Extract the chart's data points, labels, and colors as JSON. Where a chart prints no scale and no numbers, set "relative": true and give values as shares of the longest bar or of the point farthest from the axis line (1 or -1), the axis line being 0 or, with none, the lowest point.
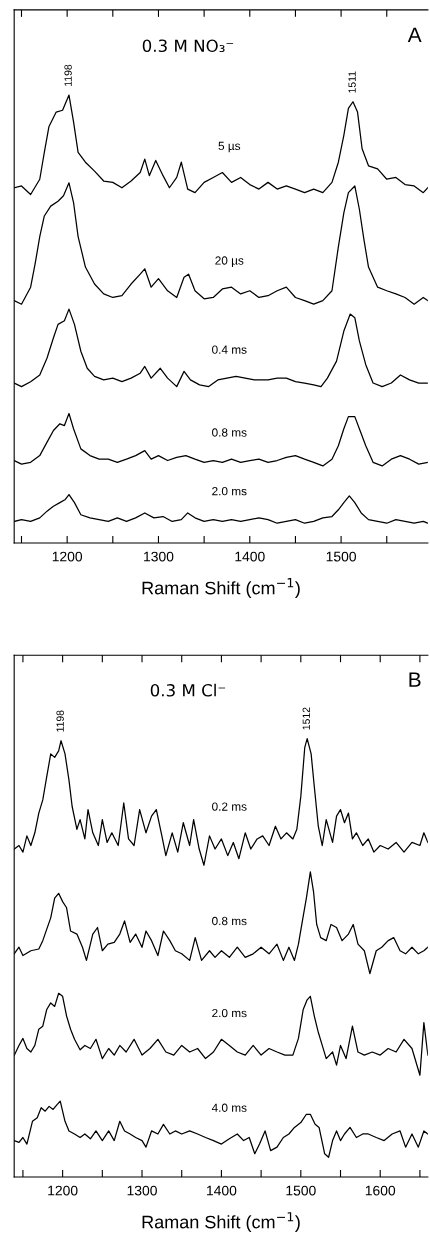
{
  "chart_data": [
    {
      "type": "line",
      "relative": true,
      "title": "0.3 M NO₃⁻",
      "xlabel": "Raman Shift (cm$^{−1}$)",
      "tick_labels": "x",
      "xlim": [
        1142,
        1595
      ],
      "xticks": [
        {
          "value": 1150,
          "label": null
        },
        1200,
        {
          "value": 1250,
          "label": null
        },
        1300,
        {
          "value": 1350,
          "label": null
        },
        1400,
        {
          "value": 1450,
          "label": null
        },
        1500,
        {
          "value": 1550,
          "label": null
        }
      ],
      "annotations": [
        "A",
        {
          "text": "1198",
          "x": 1202,
          "y": 1.0
        },
        {
          "text": "1511",
          "x": 1513,
          "y": 0.985
        }
      ],
      "series": [
        {
          "name": "5 µs",
          "color": "#000000",
          "x": [
            1142,
            1150,
            1160,
            1170,
            1175,
            1180,
            1188,
            1195,
            1202,
            1207,
            1212,
            1220,
            1230,
            1240,
            1250,
            1260,
            1270,
            1280,
            1285,
            1290,
            1297,
            1305,
            1312,
            1320,
            1325,
            1332,
            1340,
            1350,
            1360,
            1370,
            1380,
            1390,
            1400,
            1410,
            1420,
            1430,
            1440,
            1450,
            1460,
            1470,
            1480,
            1490,
            1497,
            1503,
            1508,
            1513,
            1518,
            1523,
            1530,
            1540,
            1550,
            1560,
            1570,
            1580,
            1590,
            1595
          ],
          "values": [
            0.793,
            0.797,
            0.778,
            0.812,
            0.872,
            0.929,
            0.962,
            0.966,
            1.0,
            0.94,
            0.872,
            0.85,
            0.83,
            0.808,
            0.805,
            0.793,
            0.808,
            0.827,
            0.857,
            0.82,
            0.854,
            0.82,
            0.793,
            0.816,
            0.85,
            0.79,
            0.782,
            0.805,
            0.816,
            0.827,
            0.805,
            0.816,
            0.8,
            0.79,
            0.805,
            0.79,
            0.797,
            0.79,
            0.782,
            0.79,
            0.782,
            0.805,
            0.85,
            0.91,
            0.97,
            0.985,
            0.962,
            0.88,
            0.842,
            0.835,
            0.812,
            0.816,
            0.8,
            0.797,
            0.782,
            0.793
          ]
        },
        {
          "name": "20 µs",
          "color": "#000000",
          "x": [
            1142,
            1150,
            1160,
            1165,
            1170,
            1175,
            1182,
            1190,
            1196,
            1202,
            1207,
            1212,
            1220,
            1230,
            1240,
            1250,
            1260,
            1270,
            1280,
            1285,
            1292,
            1300,
            1310,
            1320,
            1328,
            1333,
            1340,
            1350,
            1360,
            1370,
            1380,
            1390,
            1400,
            1410,
            1420,
            1430,
            1440,
            1450,
            1460,
            1470,
            1480,
            1490,
            1497,
            1503,
            1508,
            1515,
            1520,
            1525,
            1530,
            1540,
            1550,
            1560,
            1570,
            1580,
            1590,
            1595
          ],
          "values": [
            0.541,
            0.533,
            0.571,
            0.624,
            0.684,
            0.73,
            0.752,
            0.763,
            0.775,
            0.804,
            0.76,
            0.684,
            0.616,
            0.578,
            0.556,
            0.548,
            0.552,
            0.578,
            0.6,
            0.612,
            0.571,
            0.59,
            0.563,
            0.548,
            0.593,
            0.6,
            0.563,
            0.545,
            0.548,
            0.567,
            0.571,
            0.556,
            0.563,
            0.548,
            0.552,
            0.563,
            0.571,
            0.548,
            0.541,
            0.533,
            0.541,
            0.563,
            0.661,
            0.737,
            0.782,
            0.797,
            0.745,
            0.677,
            0.616,
            0.571,
            0.563,
            0.556,
            0.548,
            0.533,
            0.548,
            0.541
          ]
        },
        {
          "name": "0.4 ms",
          "color": "#000000",
          "x": [
            1142,
            1150,
            1160,
            1170,
            1178,
            1185,
            1190,
            1197,
            1202,
            1208,
            1215,
            1222,
            1230,
            1240,
            1250,
            1260,
            1270,
            1280,
            1285,
            1292,
            1302,
            1310,
            1320,
            1328,
            1335,
            1345,
            1355,
            1365,
            1375,
            1385,
            1395,
            1405,
            1420,
            1430,
            1440,
            1450,
            1460,
            1470,
            1478,
            1485,
            1495,
            1503,
            1510,
            1515,
            1520,
            1527,
            1535,
            1545,
            1555,
            1565,
            1575,
            1585,
            1595
          ],
          "values": [
            0.357,
            0.349,
            0.36,
            0.375,
            0.413,
            0.458,
            0.488,
            0.496,
            0.522,
            0.488,
            0.428,
            0.39,
            0.372,
            0.364,
            0.368,
            0.36,
            0.368,
            0.379,
            0.394,
            0.368,
            0.39,
            0.368,
            0.349,
            0.383,
            0.364,
            0.353,
            0.349,
            0.364,
            0.368,
            0.372,
            0.368,
            0.364,
            0.364,
            0.368,
            0.368,
            0.36,
            0.357,
            0.353,
            0.349,
            0.368,
            0.406,
            0.473,
            0.511,
            0.503,
            0.451,
            0.398,
            0.357,
            0.349,
            0.357,
            0.375,
            0.364,
            0.357,
            0.357
          ]
        },
        {
          "name": "0.8 ms",
          "color": "#000000",
          "x": [
            1142,
            1150,
            1160,
            1170,
            1178,
            1185,
            1192,
            1197,
            1202,
            1207,
            1215,
            1225,
            1235,
            1245,
            1255,
            1265,
            1275,
            1285,
            1292,
            1300,
            1310,
            1320,
            1330,
            1340,
            1350,
            1360,
            1370,
            1380,
            1390,
            1400,
            1410,
            1420,
            1430,
            1440,
            1450,
            1460,
            1470,
            1480,
            1490,
            1497,
            1503,
            1508,
            1515,
            1520,
            1527,
            1535,
            1545,
            1555,
            1565,
            1575,
            1585,
            1595
          ],
          "values": [
            0.184,
            0.176,
            0.18,
            0.195,
            0.225,
            0.251,
            0.266,
            0.262,
            0.289,
            0.255,
            0.21,
            0.195,
            0.187,
            0.187,
            0.18,
            0.187,
            0.195,
            0.206,
            0.187,
            0.195,
            0.184,
            0.191,
            0.195,
            0.187,
            0.18,
            0.184,
            0.18,
            0.187,
            0.18,
            0.184,
            0.187,
            0.18,
            0.184,
            0.191,
            0.195,
            0.187,
            0.18,
            0.172,
            0.187,
            0.217,
            0.255,
            0.282,
            0.282,
            0.255,
            0.217,
            0.18,
            0.172,
            0.187,
            0.195,
            0.187,
            0.176,
            0.18
          ]
        },
        {
          "name": "2.0 ms",
          "color": "#000000",
          "x": [
            1142,
            1150,
            1160,
            1170,
            1178,
            1185,
            1192,
            1198,
            1202,
            1208,
            1215,
            1225,
            1235,
            1245,
            1255,
            1265,
            1275,
            1285,
            1295,
            1305,
            1315,
            1325,
            1332,
            1340,
            1350,
            1360,
            1370,
            1380,
            1390,
            1400,
            1410,
            1420,
            1430,
            1440,
            1450,
            1460,
            1470,
            1480,
            1490,
            1497,
            1503,
            1509,
            1515,
            1522,
            1530,
            1540,
            1550,
            1560,
            1570,
            1580,
            1590,
            1595
          ],
          "values": [
            0.048,
            0.052,
            0.048,
            0.056,
            0.071,
            0.082,
            0.09,
            0.097,
            0.108,
            0.09,
            0.063,
            0.056,
            0.052,
            0.048,
            0.056,
            0.048,
            0.056,
            0.067,
            0.056,
            0.059,
            0.048,
            0.052,
            0.067,
            0.056,
            0.048,
            0.052,
            0.048,
            0.052,
            0.048,
            0.052,
            0.056,
            0.052,
            0.044,
            0.048,
            0.052,
            0.044,
            0.048,
            0.056,
            0.059,
            0.074,
            0.09,
            0.105,
            0.09,
            0.067,
            0.052,
            0.048,
            0.044,
            0.052,
            0.048,
            0.044,
            0.048,
            0.044
          ]
        }
      ]
    },
    {
      "type": "line",
      "relative": true,
      "title": "0.3 M Cl⁻",
      "xlabel": "Raman Shift (cm$^{−1}$)",
      "tick_labels": "x",
      "xlim": [
        1139,
        1660
      ],
      "xticks": [
        {
          "value": 1150,
          "label": null
        },
        1200,
        {
          "value": 1250,
          "label": null
        },
        1300,
        {
          "value": 1350,
          "label": null
        },
        1400,
        {
          "value": 1450,
          "label": null
        },
        1500,
        {
          "value": 1550,
          "label": null
        },
        1600,
        {
          "value": 1650,
          "label": null
        }
      ],
      "annotations": [
        "B",
        {
          "text": "1198",
          "x": 1198,
          "y": 0.995
        },
        {
          "text": "1512",
          "x": 1508,
          "y": 1.0
        }
      ],
      "series": [
        {
          "name": "0.2 ms",
          "color": "#000000",
          "x": [
            1139,
            1145,
            1150,
            1155,
            1160,
            1165,
            1170,
            1175,
            1180,
            1185,
            1190,
            1195,
            1198,
            1203,
            1208,
            1212,
            1218,
            1222,
            1228,
            1232,
            1238,
            1245,
            1250,
            1256,
            1262,
            1270,
            1277,
            1283,
            1290,
            1297,
            1305,
            1312,
            1318,
            1325,
            1330,
            1338,
            1345,
            1352,
            1360,
            1365,
            1372,
            1378,
            1385,
            1392,
            1400,
            1408,
            1415,
            1422,
            1430,
            1437,
            1445,
            1452,
            1460,
            1468,
            1475,
            1482,
            1490,
            1495,
            1500,
            1505,
            1508,
            1513,
            1517,
            1522,
            1527,
            1532,
            1540,
            1545,
            1550,
            1555,
            1560,
            1565,
            1570,
            1578,
            1585,
            1592,
            1600,
            1610,
            1620,
            1630,
            1640,
            1650,
            1655,
            1660
          ],
          "values": [
            0.748,
            0.756,
            0.741,
            0.778,
            0.756,
            0.785,
            0.83,
            0.86,
            0.913,
            0.965,
            0.957,
            0.972,
            0.995,
            0.965,
            0.905,
            0.845,
            0.793,
            0.815,
            0.771,
            0.838,
            0.785,
            0.756,
            0.815,
            0.763,
            0.785,
            0.756,
            0.853,
            0.771,
            0.756,
            0.838,
            0.785,
            0.823,
            0.838,
            0.778,
            0.733,
            0.785,
            0.741,
            0.808,
            0.756,
            0.815,
            0.748,
            0.711,
            0.778,
            0.748,
            0.771,
            0.733,
            0.763,
            0.726,
            0.785,
            0.748,
            0.771,
            0.778,
            0.756,
            0.8,
            0.771,
            0.785,
            0.771,
            0.793,
            0.868,
            0.98,
            1.0,
            0.965,
            0.89,
            0.8,
            0.756,
            0.815,
            0.763,
            0.823,
            0.838,
            0.808,
            0.83,
            0.771,
            0.785,
            0.756,
            0.771,
            0.741,
            0.756,
            0.748,
            0.763,
            0.741,
            0.763,
            0.756,
            0.785,
            0.763
          ]
        },
        {
          "name": "0.8 ms",
          "color": "#000000",
          "x": [
            1139,
            1145,
            1150,
            1160,
            1170,
            1175,
            1185,
            1190,
            1195,
            1200,
            1205,
            1210,
            1218,
            1225,
            1230,
            1238,
            1244,
            1250,
            1257,
            1265,
            1272,
            1278,
            1285,
            1292,
            1300,
            1305,
            1312,
            1320,
            1327,
            1335,
            1342,
            1350,
            1360,
            1367,
            1375,
            1385,
            1392,
            1400,
            1410,
            1420,
            1430,
            1440,
            1450,
            1460,
            1470,
            1478,
            1485,
            1492,
            1497,
            1502,
            1507,
            1512,
            1516,
            1520,
            1525,
            1532,
            1538,
            1545,
            1552,
            1560,
            1566,
            1572,
            1580,
            1587,
            1595,
            1602,
            1610,
            1617,
            1625,
            1632,
            1640,
            1648,
            1655,
            1660
          ],
          "values": [
            0.509,
            0.524,
            0.505,
            0.516,
            0.52,
            0.539,
            0.591,
            0.636,
            0.647,
            0.628,
            0.614,
            0.561,
            0.554,
            0.524,
            0.494,
            0.554,
            0.569,
            0.516,
            0.531,
            0.535,
            0.554,
            0.584,
            0.535,
            0.554,
            0.524,
            0.561,
            0.539,
            0.505,
            0.561,
            0.539,
            0.516,
            0.509,
            0.494,
            0.546,
            0.494,
            0.516,
            0.501,
            0.516,
            0.501,
            0.524,
            0.501,
            0.509,
            0.524,
            0.509,
            0.531,
            0.494,
            0.524,
            0.494,
            0.531,
            0.584,
            0.636,
            0.696,
            0.651,
            0.576,
            0.546,
            0.539,
            0.576,
            0.569,
            0.539,
            0.554,
            0.576,
            0.531,
            0.516,
            0.464,
            0.516,
            0.524,
            0.539,
            0.546,
            0.516,
            0.509,
            0.524,
            0.509,
            0.516,
            0.524
          ]
        },
        {
          "name": "2.0 ms",
          "color": "#000000",
          "x": [
            1139,
            1145,
            1150,
            1155,
            1160,
            1165,
            1170,
            1175,
            1180,
            1185,
            1190,
            1195,
            1200,
            1205,
            1210,
            1215,
            1222,
            1228,
            1235,
            1242,
            1250,
            1258,
            1265,
            1272,
            1280,
            1290,
            1300,
            1310,
            1320,
            1330,
            1340,
            1350,
            1360,
            1370,
            1380,
            1390,
            1400,
            1410,
            1420,
            1430,
            1440,
            1450,
            1460,
            1470,
            1480,
            1490,
            1497,
            1503,
            1508,
            1512,
            1517,
            1522,
            1527,
            1532,
            1540,
            1545,
            1550,
            1557,
            1565,
            1572,
            1580,
            1590,
            1600,
            1610,
            1620,
            1630,
            1640,
            1650,
            1655,
            1660
          ],
          "values": [
            0.277,
            0.3,
            0.316,
            0.293,
            0.285,
            0.3,
            0.337,
            0.344,
            0.382,
            0.397,
            0.389,
            0.419,
            0.412,
            0.367,
            0.337,
            0.314,
            0.29,
            0.3,
            0.293,
            0.314,
            0.27,
            0.293,
            0.278,
            0.3,
            0.285,
            0.314,
            0.278,
            0.293,
            0.314,
            0.285,
            0.278,
            0.3,
            0.285,
            0.293,
            0.27,
            0.285,
            0.314,
            0.3,
            0.285,
            0.278,
            0.3,
            0.278,
            0.293,
            0.285,
            0.278,
            0.278,
            0.316,
            0.382,
            0.404,
            0.412,
            0.367,
            0.33,
            0.3,
            0.27,
            0.285,
            0.255,
            0.3,
            0.27,
            0.344,
            0.285,
            0.278,
            0.285,
            0.278,
            0.293,
            0.285,
            0.314,
            0.293,
            0.232,
            0.352,
            0.278
          ]
        },
        {
          "name": "4.0 ms",
          "color": "#000000",
          "x": [
            1139,
            1145,
            1150,
            1155,
            1162,
            1168,
            1173,
            1178,
            1183,
            1188,
            1193,
            1197,
            1203,
            1208,
            1215,
            1222,
            1228,
            1235,
            1242,
            1250,
            1258,
            1265,
            1272,
            1278,
            1285,
            1292,
            1300,
            1305,
            1312,
            1320,
            1327,
            1335,
            1342,
            1350,
            1360,
            1370,
            1380,
            1390,
            1400,
            1410,
            1420,
            1428,
            1435,
            1442,
            1448,
            1455,
            1462,
            1470,
            1478,
            1485,
            1492,
            1500,
            1507,
            1512,
            1518,
            1523,
            1530,
            1535,
            1540,
            1545,
            1550,
            1555,
            1562,
            1570,
            1578,
            1585,
            1595,
            1605,
            1615,
            1625,
            1632,
            1640,
            1648,
            1655,
            1660
          ],
          "values": [
            0.083,
            0.079,
            0.09,
            0.075,
            0.127,
            0.135,
            0.158,
            0.15,
            0.161,
            0.154,
            0.165,
            0.173,
            0.127,
            0.105,
            0.098,
            0.09,
            0.098,
            0.087,
            0.105,
            0.083,
            0.105,
            0.083,
            0.127,
            0.105,
            0.098,
            0.09,
            0.083,
            0.068,
            0.105,
            0.098,
            0.12,
            0.098,
            0.105,
            0.098,
            0.105,
            0.098,
            0.09,
            0.083,
            0.075,
            0.087,
            0.098,
            0.083,
            0.09,
            0.053,
            0.075,
            0.105,
            0.06,
            0.068,
            0.09,
            0.098,
            0.113,
            0.124,
            0.143,
            0.143,
            0.12,
            0.113,
            0.053,
            0.045,
            0.083,
            0.105,
            0.083,
            0.098,
            0.113,
            0.09,
            0.098,
            0.098,
            0.09,
            0.083,
            0.098,
            0.105,
            0.068,
            0.098,
            0.068,
            0.105,
            0.098
          ]
        }
      ]
    }
  ]
}
